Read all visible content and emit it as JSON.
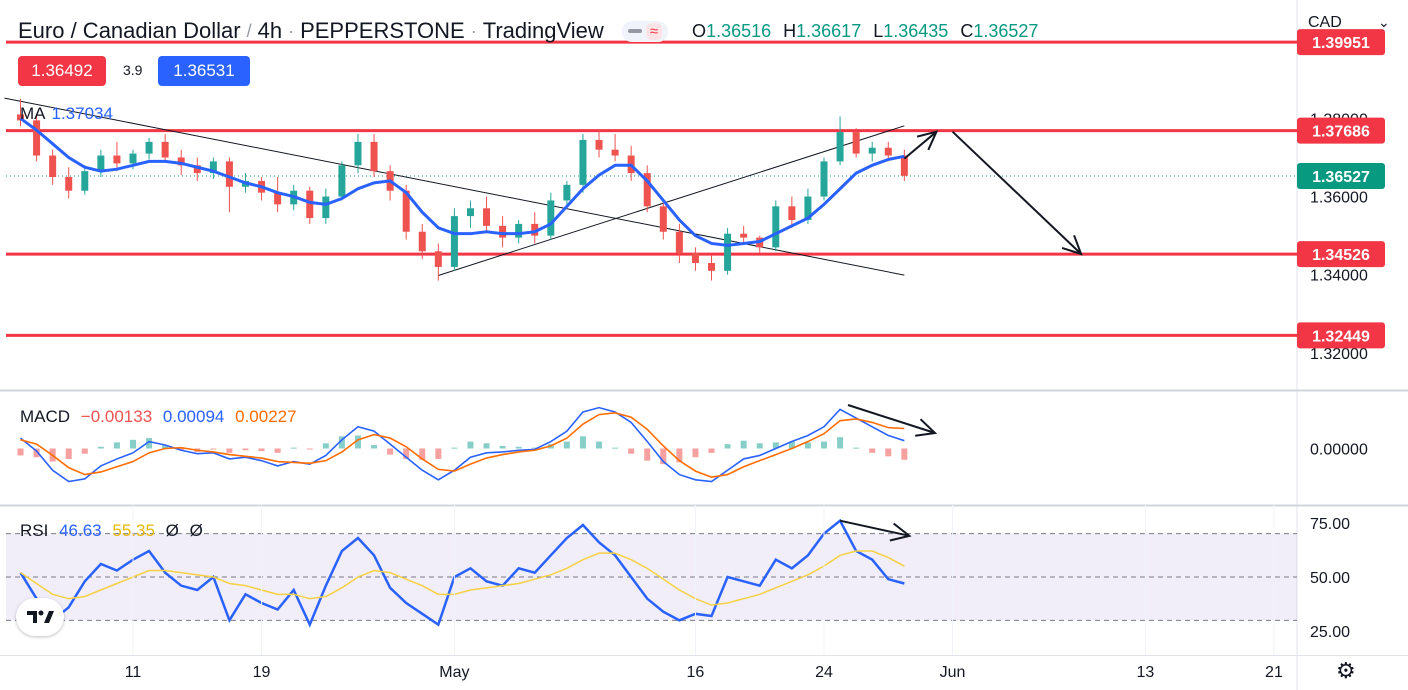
{
  "header": {
    "pair": "Euro / Canadian Dollar",
    "timeframe": "4h",
    "broker": "PEPPERSTONE",
    "platform": "TradingView",
    "ohlc": [
      {
        "label": "O",
        "value": "1.36516"
      },
      {
        "label": "H",
        "value": "1.36617"
      },
      {
        "label": "L",
        "value": "1.36435"
      },
      {
        "label": "C",
        "value": "1.36527"
      }
    ]
  },
  "quote": {
    "sell": "1.36492",
    "spread": "3.9",
    "buy": "1.36531"
  },
  "currency_selector": "CAD",
  "legends": {
    "ma": {
      "name": "MA",
      "value": "1.37034"
    },
    "macd": {
      "name": "MACD",
      "hist": "−0.00133",
      "macd": "0.00094",
      "signal": "0.00227"
    },
    "rsi": {
      "name": "RSI",
      "rsi": "46.63",
      "rsi_ma": "55.35",
      "extra1": "Ø",
      "extra2": "Ø"
    }
  },
  "colors": {
    "up": "#26a69a",
    "down": "#ef5350",
    "ma": "#2962ff",
    "level": "#f23645",
    "macd_line": "#2962ff",
    "signal_line": "#ff6d00",
    "rsi_line": "#2962ff",
    "rsi_ma_line": "#f5d142",
    "last_price": "#089981"
  },
  "icons": {
    "logo": "tradingview-logo-icon",
    "settings": "gear-icon",
    "dropdown": "chevron-down-icon"
  },
  "chart_data": [
    {
      "type": "candlestick",
      "title": "Euro / Canadian Dollar · 4h · PEPPERSTONE · TradingView",
      "ylim": [
        1.3105,
        1.4103
      ],
      "y_ticks": [
        "1.38000",
        "1.36000",
        "1.34000",
        "1.32000"
      ],
      "x_ticks": [
        "11",
        "19",
        "May",
        "16",
        "24",
        "Jun",
        "13",
        "21"
      ],
      "x_tick_dates": [
        "2022-04-11",
        "2022-04-19",
        "2022-05-01",
        "2022-05-16",
        "2022-05-24",
        "2022-06-01",
        "2022-06-13",
        "2022-06-21"
      ],
      "last_price": 1.36527,
      "last_price_label": "1.36527",
      "horizontal_levels": [
        {
          "value": 1.39951,
          "label": "1.39951"
        },
        {
          "value": 1.37686,
          "label": "1.37686"
        },
        {
          "value": 1.34526,
          "label": "1.34526"
        },
        {
          "value": 1.32449,
          "label": "1.32449"
        }
      ],
      "trendlines": [
        {
          "from": [
            "2022-04-03",
            1.3852
          ],
          "to": [
            "2022-05-29",
            1.3399
          ]
        },
        {
          "from": [
            "2022-04-30",
            1.3398
          ],
          "to": [
            "2022-05-29",
            1.3781
          ]
        }
      ],
      "arrows": [
        {
          "from": [
            "2022-05-29",
            1.3697
          ],
          "to": [
            "2022-05-31",
            1.3766
          ]
        },
        {
          "from": [
            "2022-06-01",
            1.3766
          ],
          "to": [
            "2022-06-09",
            1.3453
          ]
        }
      ],
      "candles": [
        {
          "date": "2022-04-04",
          "open": 1.381,
          "high": 1.385,
          "low": 1.378,
          "close": 1.3795
        },
        {
          "date": "2022-04-05",
          "open": 1.3795,
          "high": 1.381,
          "low": 1.369,
          "close": 1.3705
        },
        {
          "date": "2022-04-06",
          "open": 1.3705,
          "high": 1.372,
          "low": 1.363,
          "close": 1.365
        },
        {
          "date": "2022-04-07",
          "open": 1.365,
          "high": 1.3675,
          "low": 1.3595,
          "close": 1.3615
        },
        {
          "date": "2022-04-08",
          "open": 1.3615,
          "high": 1.368,
          "low": 1.3605,
          "close": 1.3665
        },
        {
          "date": "2022-04-09",
          "open": 1.3665,
          "high": 1.372,
          "low": 1.365,
          "close": 1.3705
        },
        {
          "date": "2022-04-10",
          "open": 1.3705,
          "high": 1.374,
          "low": 1.3665,
          "close": 1.3685
        },
        {
          "date": "2022-04-11",
          "open": 1.3685,
          "high": 1.372,
          "low": 1.367,
          "close": 1.371
        },
        {
          "date": "2022-04-12",
          "open": 1.371,
          "high": 1.375,
          "low": 1.3695,
          "close": 1.374
        },
        {
          "date": "2022-04-13",
          "open": 1.374,
          "high": 1.376,
          "low": 1.369,
          "close": 1.37
        },
        {
          "date": "2022-04-14",
          "open": 1.37,
          "high": 1.372,
          "low": 1.3655,
          "close": 1.368
        },
        {
          "date": "2022-04-15",
          "open": 1.368,
          "high": 1.37,
          "low": 1.364,
          "close": 1.366
        },
        {
          "date": "2022-04-16",
          "open": 1.366,
          "high": 1.37,
          "low": 1.3645,
          "close": 1.369
        },
        {
          "date": "2022-04-17",
          "open": 1.369,
          "high": 1.37,
          "low": 1.356,
          "close": 1.3625
        },
        {
          "date": "2022-04-18",
          "open": 1.3625,
          "high": 1.366,
          "low": 1.361,
          "close": 1.364
        },
        {
          "date": "2022-04-19",
          "open": 1.364,
          "high": 1.365,
          "low": 1.359,
          "close": 1.361
        },
        {
          "date": "2022-04-20",
          "open": 1.361,
          "high": 1.365,
          "low": 1.356,
          "close": 1.358
        },
        {
          "date": "2022-04-21",
          "open": 1.358,
          "high": 1.363,
          "low": 1.3565,
          "close": 1.3615
        },
        {
          "date": "2022-04-22",
          "open": 1.3615,
          "high": 1.3625,
          "low": 1.353,
          "close": 1.3545
        },
        {
          "date": "2022-04-23",
          "open": 1.3545,
          "high": 1.362,
          "low": 1.353,
          "close": 1.36
        },
        {
          "date": "2022-04-24",
          "open": 1.36,
          "high": 1.369,
          "low": 1.359,
          "close": 1.368
        },
        {
          "date": "2022-04-25",
          "open": 1.368,
          "high": 1.376,
          "low": 1.366,
          "close": 1.374
        },
        {
          "date": "2022-04-26",
          "open": 1.374,
          "high": 1.376,
          "low": 1.365,
          "close": 1.3665
        },
        {
          "date": "2022-04-27",
          "open": 1.3665,
          "high": 1.368,
          "low": 1.359,
          "close": 1.3615
        },
        {
          "date": "2022-04-28",
          "open": 1.3615,
          "high": 1.363,
          "low": 1.349,
          "close": 1.351
        },
        {
          "date": "2022-04-29",
          "open": 1.351,
          "high": 1.353,
          "low": 1.344,
          "close": 1.346
        },
        {
          "date": "2022-04-30",
          "open": 1.346,
          "high": 1.348,
          "low": 1.3385,
          "close": 1.342
        },
        {
          "date": "2022-05-01",
          "open": 1.342,
          "high": 1.357,
          "low": 1.341,
          "close": 1.355
        },
        {
          "date": "2022-05-02",
          "open": 1.355,
          "high": 1.359,
          "low": 1.352,
          "close": 1.357
        },
        {
          "date": "2022-05-03",
          "open": 1.357,
          "high": 1.36,
          "low": 1.351,
          "close": 1.3525
        },
        {
          "date": "2022-05-04",
          "open": 1.3525,
          "high": 1.355,
          "low": 1.347,
          "close": 1.3495
        },
        {
          "date": "2022-05-05",
          "open": 1.3495,
          "high": 1.354,
          "low": 1.348,
          "close": 1.353
        },
        {
          "date": "2022-05-06",
          "open": 1.353,
          "high": 1.356,
          "low": 1.348,
          "close": 1.35
        },
        {
          "date": "2022-05-07",
          "open": 1.35,
          "high": 1.361,
          "low": 1.349,
          "close": 1.359
        },
        {
          "date": "2022-05-08",
          "open": 1.359,
          "high": 1.364,
          "low": 1.357,
          "close": 1.363
        },
        {
          "date": "2022-05-09",
          "open": 1.363,
          "high": 1.376,
          "low": 1.361,
          "close": 1.3745
        },
        {
          "date": "2022-05-10",
          "open": 1.3745,
          "high": 1.377,
          "low": 1.37,
          "close": 1.372
        },
        {
          "date": "2022-05-11",
          "open": 1.372,
          "high": 1.376,
          "low": 1.369,
          "close": 1.3705
        },
        {
          "date": "2022-05-12",
          "open": 1.3705,
          "high": 1.373,
          "low": 1.364,
          "close": 1.366
        },
        {
          "date": "2022-05-13",
          "open": 1.366,
          "high": 1.368,
          "low": 1.356,
          "close": 1.3575
        },
        {
          "date": "2022-05-14",
          "open": 1.3575,
          "high": 1.359,
          "low": 1.349,
          "close": 1.351
        },
        {
          "date": "2022-05-15",
          "open": 1.351,
          "high": 1.353,
          "low": 1.343,
          "close": 1.3455
        },
        {
          "date": "2022-05-16",
          "open": 1.3455,
          "high": 1.347,
          "low": 1.341,
          "close": 1.343
        },
        {
          "date": "2022-05-17",
          "open": 1.343,
          "high": 1.345,
          "low": 1.3385,
          "close": 1.341
        },
        {
          "date": "2022-05-18",
          "open": 1.341,
          "high": 1.352,
          "low": 1.34,
          "close": 1.3505
        },
        {
          "date": "2022-05-19",
          "open": 1.3505,
          "high": 1.3525,
          "low": 1.348,
          "close": 1.3495
        },
        {
          "date": "2022-05-20",
          "open": 1.3495,
          "high": 1.35,
          "low": 1.3455,
          "close": 1.347
        },
        {
          "date": "2022-05-21",
          "open": 1.347,
          "high": 1.359,
          "low": 1.346,
          "close": 1.3575
        },
        {
          "date": "2022-05-22",
          "open": 1.3575,
          "high": 1.36,
          "low": 1.352,
          "close": 1.354
        },
        {
          "date": "2022-05-23",
          "open": 1.354,
          "high": 1.362,
          "low": 1.353,
          "close": 1.36
        },
        {
          "date": "2022-05-24",
          "open": 1.36,
          "high": 1.37,
          "low": 1.359,
          "close": 1.369
        },
        {
          "date": "2022-05-25",
          "open": 1.369,
          "high": 1.3805,
          "low": 1.368,
          "close": 1.3765
        },
        {
          "date": "2022-05-26",
          "open": 1.3765,
          "high": 1.3775,
          "low": 1.37,
          "close": 1.371
        },
        {
          "date": "2022-05-27",
          "open": 1.371,
          "high": 1.374,
          "low": 1.369,
          "close": 1.3725
        },
        {
          "date": "2022-05-28",
          "open": 1.3725,
          "high": 1.374,
          "low": 1.369,
          "close": 1.3705
        },
        {
          "date": "2022-05-29",
          "open": 1.3705,
          "high": 1.372,
          "low": 1.364,
          "close": 1.3653
        }
      ],
      "ma": [
        1.38,
        1.377,
        1.3735,
        1.37,
        1.3675,
        1.3665,
        1.367,
        1.368,
        1.369,
        1.369,
        1.3685,
        1.3675,
        1.3665,
        1.365,
        1.3635,
        1.3625,
        1.361,
        1.36,
        1.3585,
        1.358,
        1.3595,
        1.362,
        1.3635,
        1.364,
        1.361,
        1.356,
        1.352,
        1.3505,
        1.3505,
        1.351,
        1.3505,
        1.3505,
        1.351,
        1.353,
        1.3575,
        1.362,
        1.3655,
        1.368,
        1.368,
        1.364,
        1.359,
        1.354,
        1.35,
        1.348,
        1.3475,
        1.348,
        1.3485,
        1.3505,
        1.3525,
        1.3545,
        1.358,
        1.362,
        1.366,
        1.368,
        1.3695,
        1.3703
      ]
    },
    {
      "type": "line",
      "title": "MACD",
      "ylim": [
        -0.0065,
        0.0065
      ],
      "y_ticks": [
        "0.00000"
      ],
      "series": [
        {
          "name": "MACD",
          "values": [
            0.0012,
            -0.0003,
            -0.0025,
            -0.0038,
            -0.0035,
            -0.002,
            -0.0012,
            -0.0005,
            0.0008,
            0.0004,
            -0.0002,
            -0.0006,
            -0.0005,
            -0.0012,
            -0.001,
            -0.0014,
            -0.002,
            -0.0015,
            -0.0018,
            -0.0008,
            0.001,
            0.0025,
            0.002,
            0.0005,
            -0.001,
            -0.0025,
            -0.0036,
            -0.0025,
            -0.001,
            -0.0005,
            -0.0004,
            -0.0002,
            -0.0001,
            0.0008,
            0.002,
            0.0042,
            0.0047,
            0.0042,
            0.003,
            0.0008,
            -0.0015,
            -0.003,
            -0.0036,
            -0.0038,
            -0.0025,
            -0.0012,
            -0.0008,
            0.0,
            0.0008,
            0.0015,
            0.0025,
            0.0045,
            0.0035,
            0.0025,
            0.0015,
            0.0009
          ]
        },
        {
          "name": "Signal",
          "values": [
            0.001,
            0.0005,
            -0.0008,
            -0.0022,
            -0.003,
            -0.0027,
            -0.0021,
            -0.0015,
            -0.0005,
            0.0,
            0.0001,
            -0.0002,
            -0.0004,
            -0.0007,
            -0.0009,
            -0.0011,
            -0.0015,
            -0.0016,
            -0.0017,
            -0.0014,
            -0.0004,
            0.001,
            0.0016,
            0.0012,
            0.0002,
            -0.0012,
            -0.0024,
            -0.0026,
            -0.0018,
            -0.0011,
            -0.0007,
            -0.0004,
            -0.0002,
            0.0003,
            0.0012,
            0.0028,
            0.0039,
            0.0041,
            0.0036,
            0.0022,
            0.0003,
            -0.0014,
            -0.0026,
            -0.0033,
            -0.003,
            -0.0021,
            -0.0014,
            -0.0007,
            0.0,
            0.0008,
            0.0017,
            0.0032,
            0.0034,
            0.003,
            0.0024,
            0.0023
          ]
        }
      ],
      "histogram": [
        -0.0008,
        -0.001,
        -0.0015,
        -0.0012,
        -0.0006,
        0.0002,
        0.0007,
        0.001,
        0.0012,
        0.0004,
        -0.0002,
        -0.0004,
        -0.0001,
        -0.0005,
        -0.0002,
        -0.0003,
        -0.0005,
        0.0001,
        -0.0001,
        0.0006,
        0.0014,
        0.0015,
        0.0004,
        -0.0007,
        -0.0012,
        -0.0013,
        -0.0012,
        0.0001,
        0.0008,
        0.0006,
        0.0003,
        0.0002,
        0.0001,
        0.0005,
        0.0008,
        0.0014,
        0.0008,
        0.0001,
        -0.0006,
        -0.0014,
        -0.0018,
        -0.0016,
        -0.001,
        -0.0005,
        0.0005,
        0.0009,
        0.0006,
        0.0007,
        0.0008,
        0.0007,
        0.0008,
        0.0013,
        0.0001,
        -0.0005,
        -0.0009,
        -0.0013
      ]
    },
    {
      "type": "line",
      "title": "RSI",
      "ylim": [
        20,
        80
      ],
      "y_ticks": [
        "75.00",
        "50.00",
        "25.00"
      ],
      "bands": {
        "upper": 70,
        "middle": 50,
        "lower": 30
      },
      "series": [
        {
          "name": "RSI",
          "values": [
            52,
            40,
            30,
            36,
            48,
            56,
            53,
            58,
            62,
            52,
            46,
            44,
            50,
            30,
            42,
            38,
            35,
            44,
            28,
            46,
            62,
            68,
            60,
            45,
            38,
            33,
            28,
            50,
            54,
            48,
            46,
            54,
            52,
            60,
            68,
            74,
            66,
            60,
            50,
            40,
            34,
            30,
            33,
            32,
            50,
            48,
            46,
            58,
            54,
            60,
            70,
            76,
            62,
            58,
            49,
            47
          ]
        },
        {
          "name": "RSI MA",
          "values": [
            52,
            47,
            42,
            40,
            41,
            44,
            47,
            50,
            53,
            53,
            52,
            51,
            50,
            47,
            46,
            44,
            42,
            42,
            40,
            41,
            45,
            50,
            53,
            52,
            49,
            46,
            42,
            42,
            44,
            45,
            46,
            47,
            49,
            51,
            54,
            58,
            61,
            61,
            58,
            54,
            49,
            44,
            40,
            37,
            38,
            40,
            42,
            45,
            48,
            51,
            55,
            60,
            62,
            62,
            59,
            55
          ]
        }
      ],
      "annotations": [
        {
          "from": [
            "2022-05-25",
            76
          ],
          "to": [
            "2022-05-29",
            69
          ]
        }
      ]
    }
  ]
}
